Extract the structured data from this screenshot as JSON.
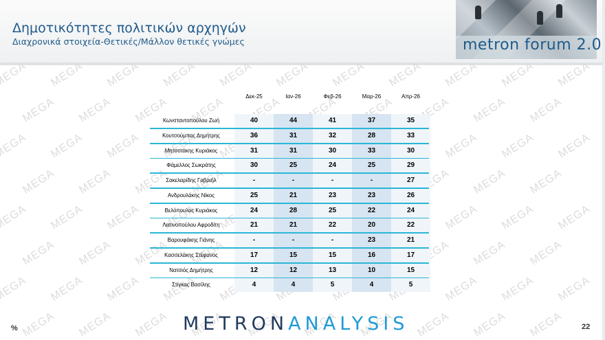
{
  "header": {
    "title": "Δημοτικότητες πολιτικών αρχηγών",
    "subtitle": "Διαχρονικά στοιχεία-Θετικές/Μάλλον θετικές γνώμες",
    "logo_text": "metron forum 2.0"
  },
  "table": {
    "columns": [
      "Δεκ-25",
      "Ιαν-26",
      "Φεβ-26",
      "Μαρ-26",
      "Απρ-26"
    ],
    "rows": [
      {
        "name": "Κωνσταντοπούλου  Ζωή",
        "values": [
          "40",
          "44",
          "41",
          "37",
          "35"
        ]
      },
      {
        "name": "Κουτσούμπας Δημήτρης",
        "values": [
          "36",
          "31",
          "32",
          "28",
          "33"
        ]
      },
      {
        "name": "Μητσοτάκης Κυριάκος",
        "values": [
          "31",
          "31",
          "30",
          "33",
          "30"
        ]
      },
      {
        "name": "Φάμελλος Σωκράτης",
        "values": [
          "30",
          "25",
          "24",
          "25",
          "29"
        ]
      },
      {
        "name": "Σακελαρίδης Γαβριήλ",
        "values": [
          "-",
          "-",
          "-",
          "-",
          "27"
        ]
      },
      {
        "name": "Ανδρουλάκης Νίκος",
        "values": [
          "25",
          "21",
          "23",
          "23",
          "26"
        ]
      },
      {
        "name": "Βελόπουλος Κυριάκος",
        "values": [
          "24",
          "28",
          "25",
          "22",
          "24"
        ]
      },
      {
        "name": "Λατινοπούλου Αφροδίτη",
        "values": [
          "21",
          "21",
          "22",
          "20",
          "22"
        ]
      },
      {
        "name": "Βαρουφάκης Γιάνης",
        "values": [
          "-",
          "-",
          "-",
          "23",
          "21"
        ]
      },
      {
        "name": "Κασσελάκης Στέφανος",
        "values": [
          "17",
          "15",
          "15",
          "16",
          "17"
        ]
      },
      {
        "name": "Νατσιός Δημήτρης",
        "values": [
          "12",
          "12",
          "13",
          "10",
          "15"
        ]
      },
      {
        "name": "Στίγκας Βασίλης",
        "values": [
          "4",
          "4",
          "5",
          "4",
          "5"
        ]
      }
    ]
  },
  "watermark": "MEGA",
  "footer": {
    "logo_part1": "METRON",
    "logo_part2": "ANALYSIS",
    "unit": "%",
    "page_number": "22"
  },
  "colors": {
    "title": "#1f5a8a",
    "row_separator": "#29b6d6",
    "cell_light": "#f0f5fa",
    "cell_dark": "#d7e4f1",
    "watermark": "#dcdcdc"
  }
}
